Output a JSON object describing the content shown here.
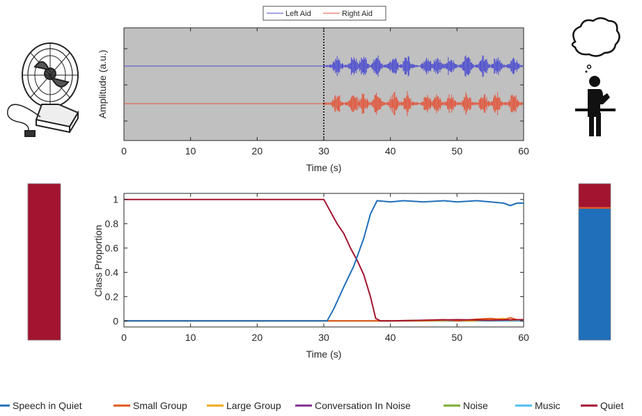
{
  "chart_data": [
    {
      "type": "line",
      "xlabel": "Time (s)",
      "ylabel": "Amplitude (a.u.)",
      "xlim": [
        0,
        60
      ],
      "xticks": [
        0,
        10,
        20,
        30,
        40,
        50,
        60
      ],
      "yticks_labeled": false,
      "grid": false,
      "background": "#c0c0c0",
      "event_marker_x": 30,
      "legend_position": "top",
      "legend": [
        "Left Aid",
        "Right Aid"
      ],
      "series": [
        {
          "name": "Left Aid",
          "color": "#4a4acf",
          "flat_until": 30,
          "activity": "speech bursts 30–60 s"
        },
        {
          "name": "Right Aid",
          "color": "#e2543a",
          "flat_until": 30,
          "activity": "speech bursts 30–60 s"
        }
      ]
    },
    {
      "type": "line",
      "xlabel": "Time (s)",
      "ylabel": "Class Proportion",
      "xlim": [
        0,
        60
      ],
      "ylim": [
        -0.05,
        1.05
      ],
      "xticks": [
        0,
        10,
        20,
        30,
        40,
        50,
        60
      ],
      "yticks": [
        0,
        0.2,
        0.4,
        0.6,
        0.8,
        1
      ],
      "ytick_labels": [
        "0",
        "0.2",
        "0.4",
        "0.6",
        "0.8",
        "1"
      ],
      "series": [
        {
          "name": "Speech in Quiet",
          "color": "#1f6fba",
          "x": [
            0,
            30.5,
            31.5,
            33,
            34.5,
            36,
            37,
            38,
            40,
            42,
            45,
            48,
            50,
            53,
            55,
            57,
            58,
            59,
            60
          ],
          "y": [
            0,
            0,
            0.1,
            0.28,
            0.45,
            0.68,
            0.88,
            0.99,
            0.98,
            0.99,
            0.98,
            0.99,
            0.98,
            0.99,
            0.98,
            0.97,
            0.95,
            0.97,
            0.97
          ]
        },
        {
          "name": "Small Group",
          "color": "#e2571e",
          "x": [
            0,
            40,
            45,
            48,
            50,
            53,
            55,
            57,
            58,
            59,
            60
          ],
          "y": [
            0,
            0,
            0.005,
            0.01,
            0.0,
            0.015,
            0.02,
            0.01,
            0.025,
            0.01,
            0.01
          ]
        },
        {
          "name": "Large Group",
          "color": "#f0a81c",
          "x": [
            0,
            45,
            50,
            52,
            55,
            57,
            58,
            60
          ],
          "y": [
            0,
            0,
            0.005,
            0.0,
            0.01,
            0.02,
            0.005,
            0.01
          ]
        },
        {
          "name": "Conversation In Noise",
          "color": "#7d2e8e",
          "x": [
            0,
            60
          ],
          "y": [
            0,
            0
          ]
        },
        {
          "name": "Noise",
          "color": "#77ac30",
          "x": [
            0,
            60
          ],
          "y": [
            0,
            0
          ]
        },
        {
          "name": "Music",
          "color": "#4dbeee",
          "x": [
            0,
            60
          ],
          "y": [
            0,
            0
          ]
        },
        {
          "name": "Quiet",
          "color": "#a2142f",
          "x": [
            0,
            30,
            31,
            32,
            33,
            34,
            35,
            36,
            37,
            37.8,
            38.5,
            40,
            45,
            50,
            55,
            60
          ],
          "y": [
            1,
            1,
            0.9,
            0.8,
            0.72,
            0.6,
            0.5,
            0.38,
            0.2,
            0.02,
            0.0,
            0.0,
            0.005,
            0.01,
            0.005,
            0.01
          ]
        }
      ],
      "legend_position": "bottom"
    },
    {
      "type": "bar",
      "stacked": true,
      "position": "left",
      "series": [
        {
          "name": "Quiet",
          "color": "#a2142f",
          "value": 1.0
        }
      ]
    },
    {
      "type": "bar",
      "stacked": true,
      "position": "right",
      "series": [
        {
          "name": "Speech in Quiet",
          "color": "#1f6fba",
          "value": 0.84
        },
        {
          "name": "Small Group",
          "color": "#e2571e",
          "value": 0.01
        },
        {
          "name": "Quiet",
          "color": "#a2142f",
          "value": 0.15
        }
      ]
    }
  ],
  "legend_items": [
    {
      "label": "Speech in Quiet",
      "color": "#1f6fba"
    },
    {
      "label": "Small Group",
      "color": "#e2571e"
    },
    {
      "label": "Large Group",
      "color": "#f0a81c"
    },
    {
      "label": "Conversation In Noise",
      "color": "#7d2e8e"
    },
    {
      "label": "Noise",
      "color": "#77ac30"
    },
    {
      "label": "Music",
      "color": "#4dbeee"
    },
    {
      "label": "Quiet",
      "color": "#a2142f"
    }
  ],
  "icons": {
    "left": "desk-fan-icon",
    "right": "person-thinking-at-desk-icon"
  }
}
